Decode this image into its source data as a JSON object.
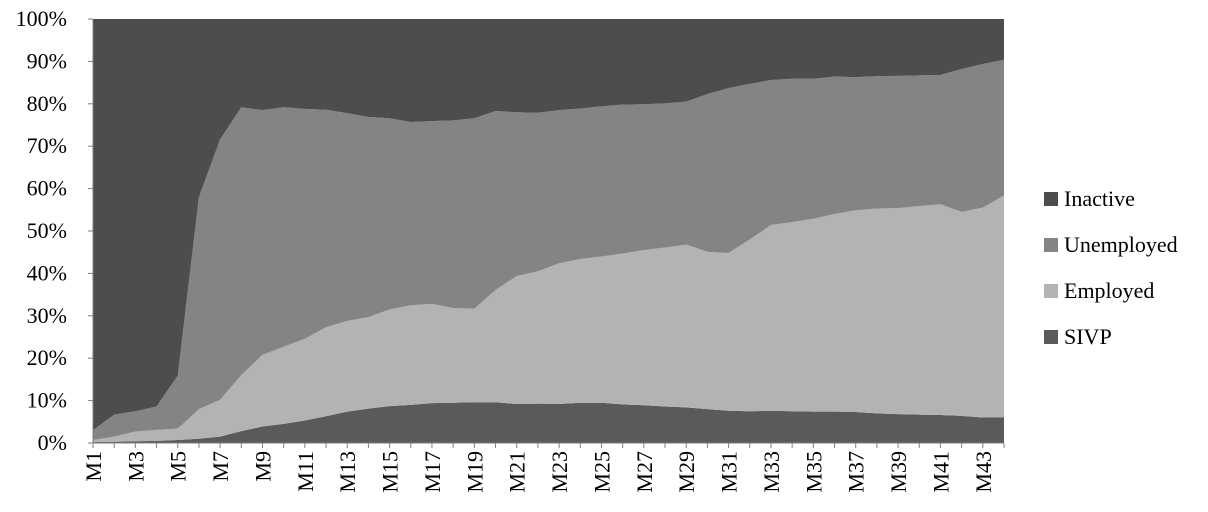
{
  "chart_data": {
    "type": "area",
    "stacked": true,
    "percent": true,
    "title": "",
    "xlabel": "",
    "ylabel": "",
    "ylim": [
      0,
      100
    ],
    "y_ticks": [
      "0%",
      "10%",
      "20%",
      "30%",
      "40%",
      "50%",
      "60%",
      "70%",
      "80%",
      "90%",
      "100%"
    ],
    "x": [
      "M1",
      "M2",
      "M3",
      "M4",
      "M5",
      "M6",
      "M7",
      "M8",
      "M9",
      "M10",
      "M11",
      "M12",
      "M13",
      "M14",
      "M15",
      "M16",
      "M17",
      "M18",
      "M19",
      "M20",
      "M21",
      "M22",
      "M23",
      "M24",
      "M25",
      "M26",
      "M27",
      "M28",
      "M29",
      "M30",
      "M31",
      "M32",
      "M33",
      "M34",
      "M35",
      "M36",
      "M37",
      "M38",
      "M39",
      "M40",
      "M41",
      "M42",
      "M43",
      "M44"
    ],
    "x_tick_labels": [
      "M1",
      "M3",
      "M5",
      "M7",
      "M9",
      "M11",
      "M13",
      "M15",
      "M17",
      "M19",
      "M21",
      "M23",
      "M25",
      "M27",
      "M29",
      "M31",
      "M33",
      "M35",
      "M37",
      "M39",
      "M41",
      "M43"
    ],
    "legend_position": "right",
    "series": [
      {
        "name": "SIVP",
        "color": "#5a5a5a",
        "values": [
          0.2,
          0.3,
          0.4,
          0.5,
          0.7,
          1.0,
          1.5,
          2.8,
          3.9,
          4.5,
          5.3,
          6.3,
          7.4,
          8.1,
          8.7,
          9.0,
          9.4,
          9.5,
          9.6,
          9.6,
          9.2,
          9.3,
          9.2,
          9.5,
          9.5,
          9.1,
          8.9,
          8.6,
          8.4,
          8.0,
          7.6,
          7.5,
          7.6,
          7.5,
          7.4,
          7.4,
          7.3,
          7.0,
          6.8,
          6.7,
          6.6,
          6.4,
          6.0,
          6.0
        ]
      },
      {
        "name": "Employed",
        "color": "#b3b3b3",
        "values": [
          0.5,
          1.2,
          2.3,
          2.6,
          2.7,
          7.0,
          8.7,
          13.2,
          16.9,
          18.2,
          19.3,
          21.0,
          21.4,
          21.6,
          22.8,
          23.5,
          23.4,
          22.3,
          22.1,
          26.5,
          30.2,
          31.2,
          33.2,
          33.9,
          34.5,
          35.6,
          36.6,
          37.5,
          38.4,
          37.1,
          37.2,
          40.5,
          43.8,
          44.6,
          45.5,
          46.6,
          47.6,
          48.3,
          48.6,
          49.2,
          49.7,
          48.1,
          49.5,
          52.4
        ]
      },
      {
        "name": "Unemployed",
        "color": "#848484",
        "values": [
          2.3,
          5.2,
          4.8,
          5.5,
          12.5,
          50.0,
          61.4,
          63.2,
          57.7,
          56.5,
          54.2,
          51.3,
          49.0,
          47.2,
          45.1,
          43.2,
          43.1,
          44.3,
          44.9,
          42.2,
          38.6,
          37.4,
          36.1,
          35.5,
          35.4,
          35.1,
          34.4,
          34.0,
          33.7,
          37.2,
          38.9,
          36.7,
          34.2,
          33.8,
          33.0,
          32.4,
          31.4,
          31.2,
          31.2,
          30.8,
          30.5,
          33.7,
          33.9,
          32.0
        ]
      },
      {
        "name": "Inactive",
        "color": "#4d4d4d",
        "values": [
          97.0,
          93.3,
          92.5,
          91.4,
          84.1,
          42.0,
          28.4,
          20.8,
          21.5,
          20.8,
          21.2,
          21.4,
          22.2,
          23.1,
          23.4,
          24.3,
          24.1,
          23.9,
          23.4,
          21.7,
          22.0,
          22.1,
          21.5,
          21.1,
          20.6,
          20.2,
          20.1,
          19.9,
          19.5,
          17.7,
          16.3,
          15.3,
          14.4,
          14.1,
          14.1,
          13.6,
          13.7,
          13.5,
          13.4,
          13.3,
          13.2,
          11.8,
          10.6,
          9.6
        ]
      }
    ]
  }
}
